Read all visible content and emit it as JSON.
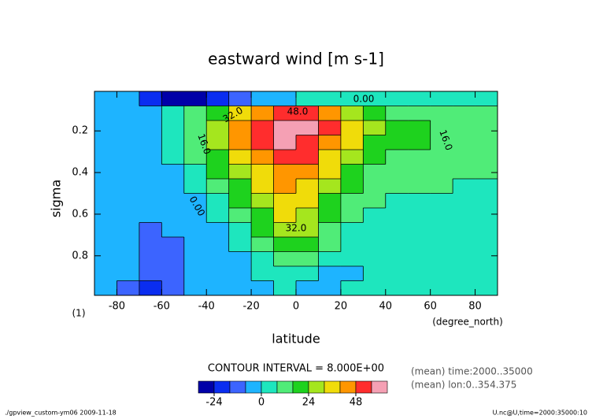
{
  "chart_data": {
    "type": "contour",
    "title": "eastward wind [m s-1]",
    "xlabel": "latitude",
    "xunit": "(degree_north)",
    "ylabel": "sigma",
    "yunit": "(1)",
    "xlim": [
      -90,
      90
    ],
    "ylim": [
      0.01,
      0.99
    ],
    "xticks": [
      -80,
      -60,
      -40,
      -20,
      0,
      20,
      40,
      60,
      80
    ],
    "yticks": [
      0.2,
      0.4,
      0.6,
      0.8
    ],
    "x": [
      -85,
      -75,
      -65,
      -55,
      -45,
      -35,
      -25,
      -15,
      -5,
      5,
      15,
      25,
      35,
      45,
      55,
      65,
      75,
      85
    ],
    "y": [
      0.045,
      0.115,
      0.185,
      0.255,
      0.325,
      0.395,
      0.465,
      0.535,
      0.605,
      0.675,
      0.745,
      0.815,
      0.885,
      0.955
    ],
    "z": [
      [
        -4,
        -8,
        -20,
        -26,
        -26,
        -22,
        -10,
        -4,
        -2,
        2,
        4,
        2,
        2,
        2,
        2,
        2,
        2,
        2
      ],
      [
        -4,
        -4,
        -2,
        2,
        10,
        22,
        34,
        44,
        50,
        50,
        44,
        30,
        20,
        14,
        10,
        8,
        8,
        8
      ],
      [
        -4,
        -4,
        -2,
        4,
        14,
        28,
        42,
        54,
        60,
        60,
        50,
        36,
        26,
        20,
        16,
        14,
        12,
        10
      ],
      [
        -4,
        -4,
        -2,
        2,
        12,
        24,
        40,
        50,
        56,
        54,
        44,
        32,
        22,
        18,
        16,
        14,
        12,
        10
      ],
      [
        -4,
        -4,
        -3,
        0,
        8,
        20,
        34,
        44,
        50,
        48,
        38,
        26,
        18,
        14,
        12,
        12,
        10,
        8
      ],
      [
        -4,
        -4,
        -4,
        -2,
        4,
        16,
        28,
        38,
        44,
        42,
        32,
        22,
        14,
        10,
        10,
        10,
        8,
        8
      ],
      [
        -4,
        -4,
        -4,
        -3,
        0,
        10,
        22,
        32,
        40,
        38,
        26,
        16,
        10,
        8,
        8,
        8,
        6,
        6
      ],
      [
        -4,
        -4,
        -4,
        -4,
        -2,
        4,
        16,
        26,
        36,
        34,
        22,
        12,
        8,
        6,
        6,
        6,
        6,
        6
      ],
      [
        -4,
        -4,
        -4,
        -4,
        -3,
        0,
        10,
        22,
        32,
        30,
        18,
        10,
        6,
        4,
        4,
        6,
        6,
        6
      ],
      [
        -4,
        -4,
        -10,
        -4,
        -4,
        -2,
        4,
        16,
        26,
        24,
        14,
        6,
        4,
        4,
        4,
        4,
        4,
        4
      ],
      [
        -4,
        -6,
        -12,
        -10,
        -4,
        -3,
        0,
        10,
        18,
        16,
        8,
        4,
        2,
        2,
        2,
        4,
        4,
        4
      ],
      [
        -4,
        -8,
        -14,
        -12,
        -5,
        -4,
        -2,
        4,
        10,
        10,
        4,
        1,
        1,
        2,
        2,
        2,
        4,
        4
      ],
      [
        -4,
        -8,
        -16,
        -14,
        -6,
        -4,
        -3,
        0,
        4,
        2,
        -1,
        -1,
        1,
        1,
        2,
        2,
        2,
        2
      ],
      [
        -4,
        -10,
        -18,
        -16,
        -8,
        -4,
        -3,
        -1,
        0,
        -2,
        -3,
        0,
        1,
        1,
        1,
        2,
        2,
        2
      ]
    ],
    "levels": [
      -24,
      -16,
      -8,
      0,
      8,
      16,
      24,
      32,
      40,
      48,
      56
    ],
    "colors": [
      "#0000a8",
      "#0a2df0",
      "#3c64ff",
      "#1eb4ff",
      "#1ee6be",
      "#50ec78",
      "#1ed21e",
      "#a5e61e",
      "#f0dc0a",
      "#ff9600",
      "#ff2d2d",
      "#f5a0b4"
    ],
    "colorbar_ticks": [
      -24,
      0,
      24,
      48
    ],
    "contour_labels": [
      "0.00",
      "32.0",
      "48.0",
      "16.0",
      "16.0",
      "0.00",
      "32.0"
    ],
    "interval_text": "CONTOUR INTERVAL = 8.000E+00",
    "notes": [
      "(mean) time:2000..35000",
      "(mean) lon:0..354.375"
    ],
    "footer_left": "./gpview_custom-ym06  2009-11-18",
    "footer_right": "U.nc@U,time=2000:35000:10"
  }
}
